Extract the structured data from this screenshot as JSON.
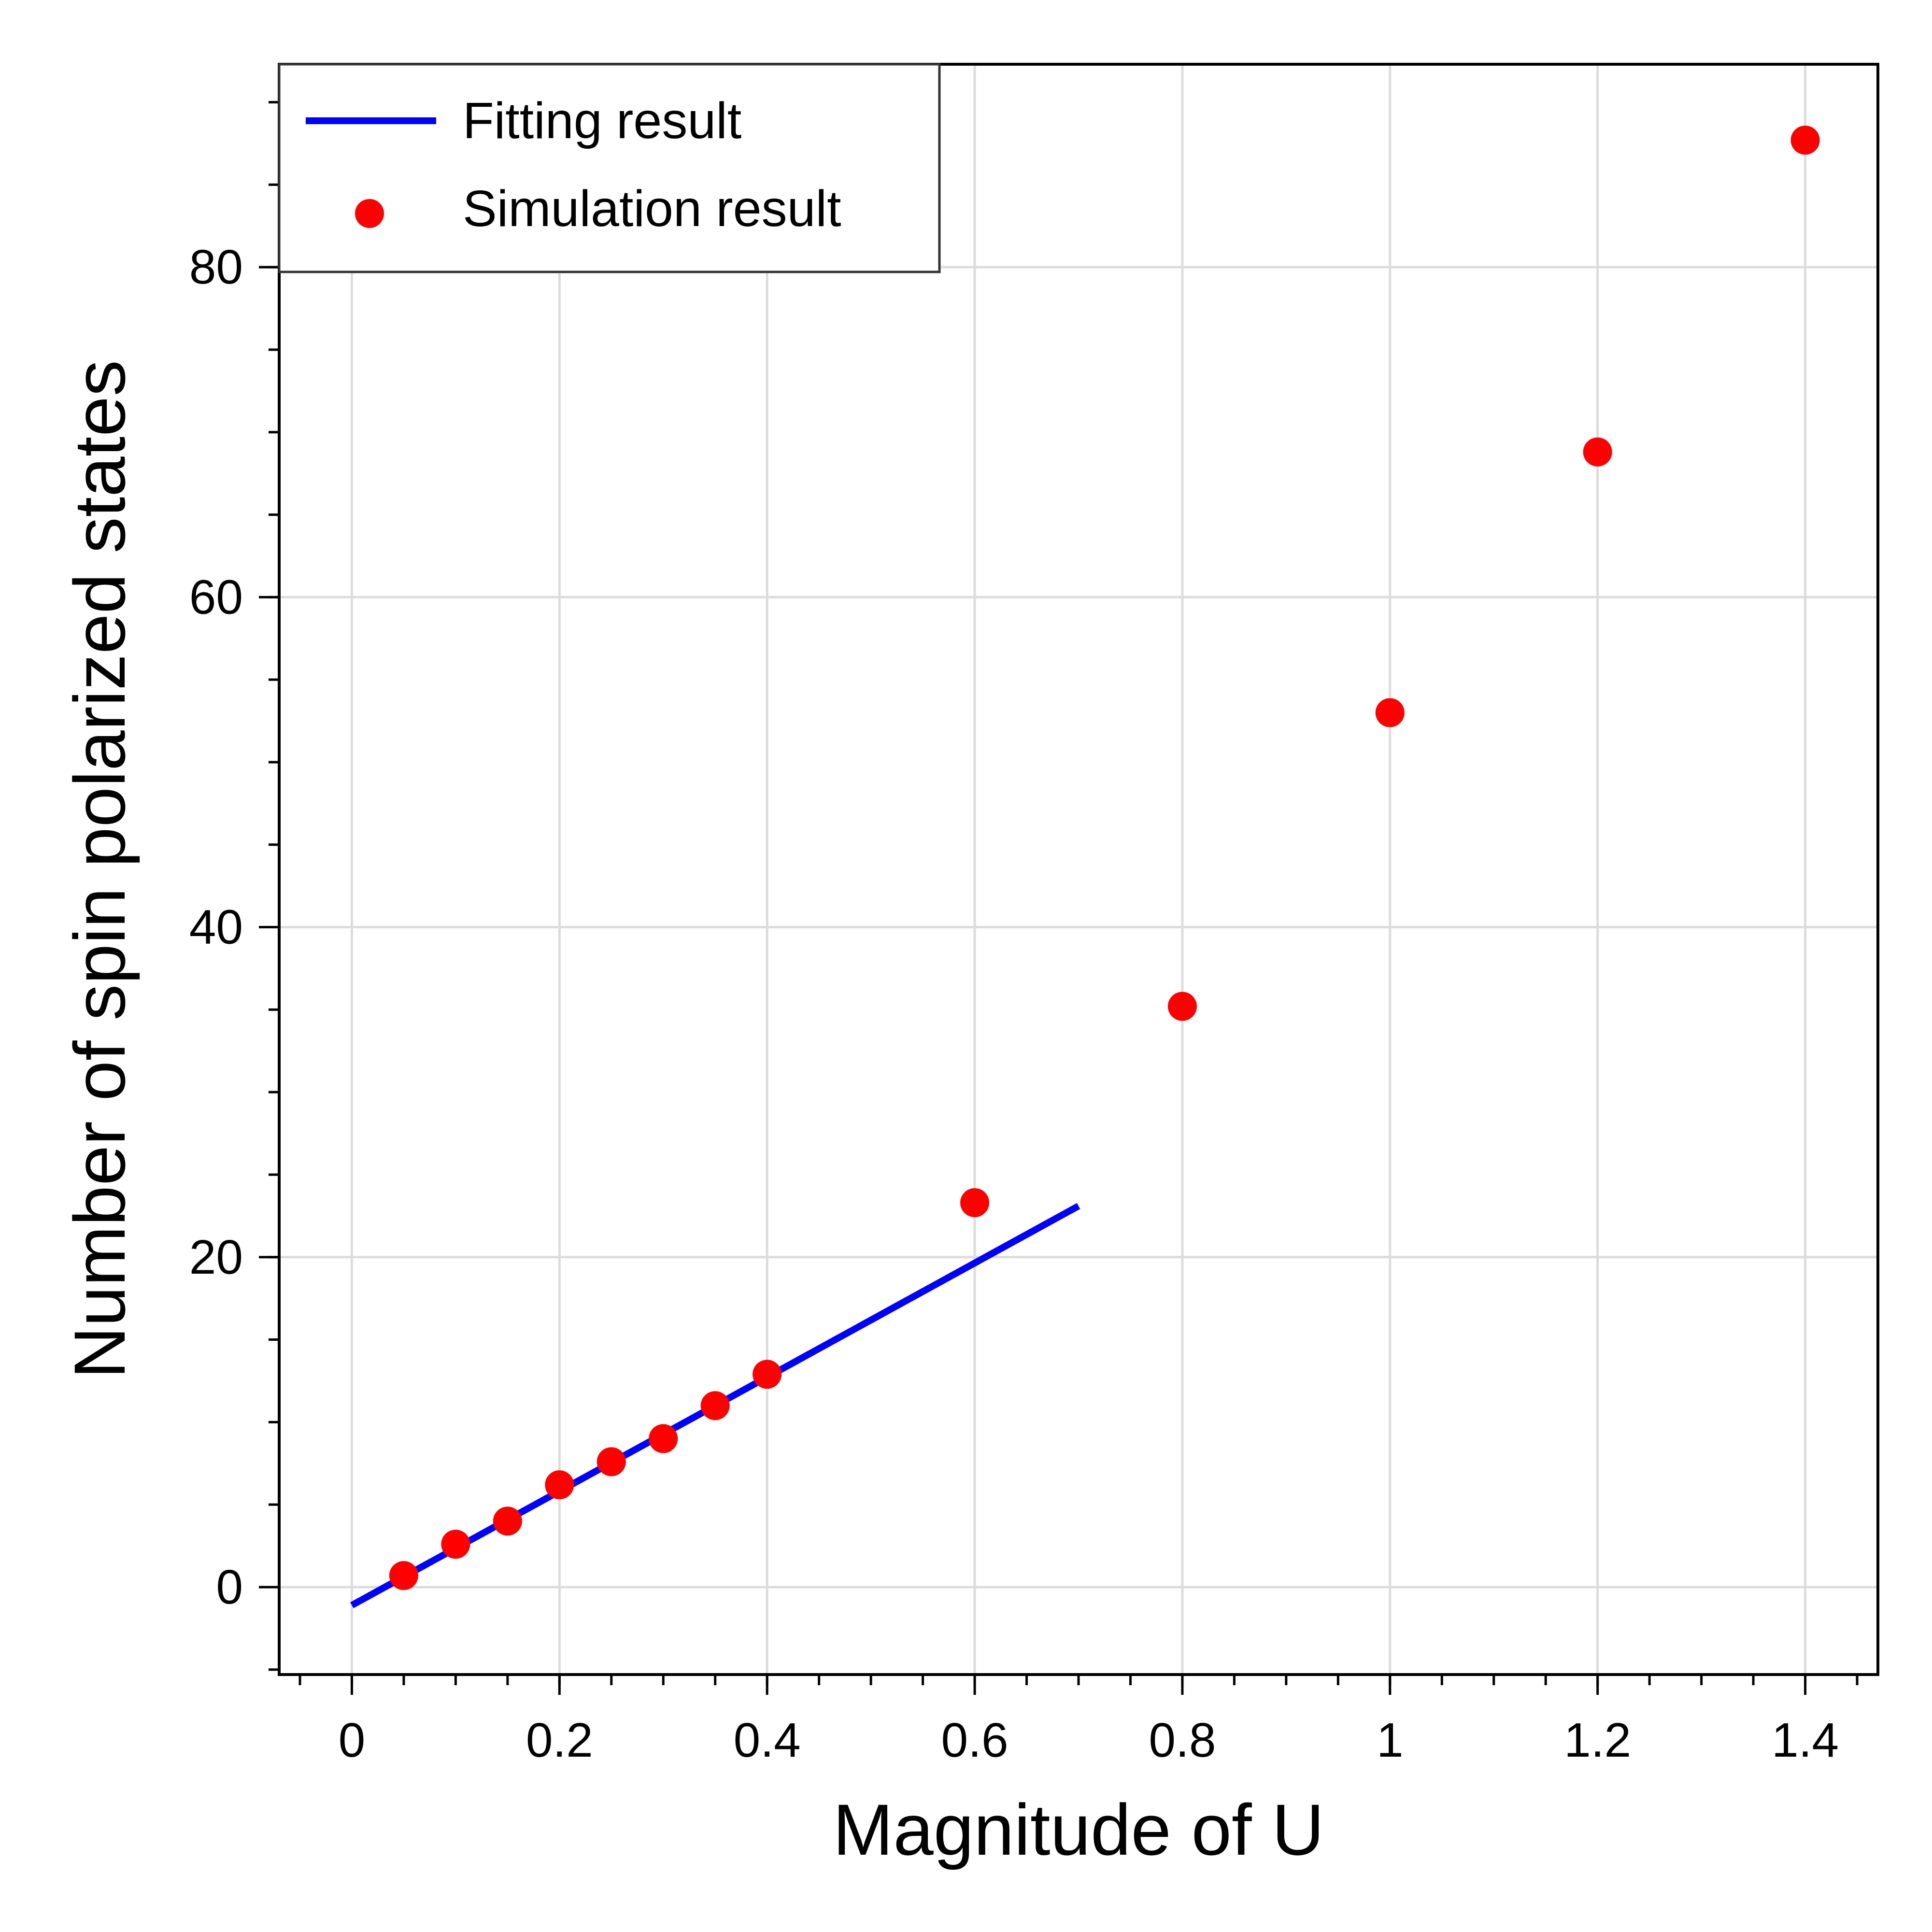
{
  "chart_data": {
    "type": "scatter",
    "xlabel": "Magnitude of U",
    "ylabel": "Number of spin polarized states",
    "xlim": [
      -0.07,
      1.47
    ],
    "ylim": [
      -5.3,
      92.3
    ],
    "xticks": [
      0,
      0.2,
      0.4,
      0.6,
      0.8,
      1,
      1.2,
      1.4
    ],
    "xtick_labels": [
      "0",
      "0.2",
      "0.4",
      "0.6",
      "0.8",
      "1",
      "1.2",
      "1.4"
    ],
    "xminor_step": 0.05,
    "yticks": [
      0,
      20,
      40,
      60,
      80
    ],
    "ytick_labels": [
      "0",
      "20",
      "40",
      "60",
      "80"
    ],
    "yminor_step": 5,
    "grid": true,
    "legend_position": "top-left",
    "series": [
      {
        "name": "Fitting result",
        "kind": "line",
        "color": "#0000ff",
        "x": [
          0,
          0.7
        ],
        "y": [
          -1.1,
          23.1
        ]
      },
      {
        "name": "Simulation result",
        "kind": "scatter",
        "color": "#ff0000",
        "x": [
          0.05,
          0.1,
          0.15,
          0.2,
          0.25,
          0.3,
          0.35,
          0.4,
          0.6,
          0.8,
          1.0,
          1.2,
          1.4
        ],
        "y": [
          0.7,
          2.6,
          4.0,
          6.2,
          7.6,
          9.0,
          11.0,
          12.9,
          23.3,
          35.2,
          53.0,
          68.8,
          87.7
        ]
      }
    ]
  }
}
